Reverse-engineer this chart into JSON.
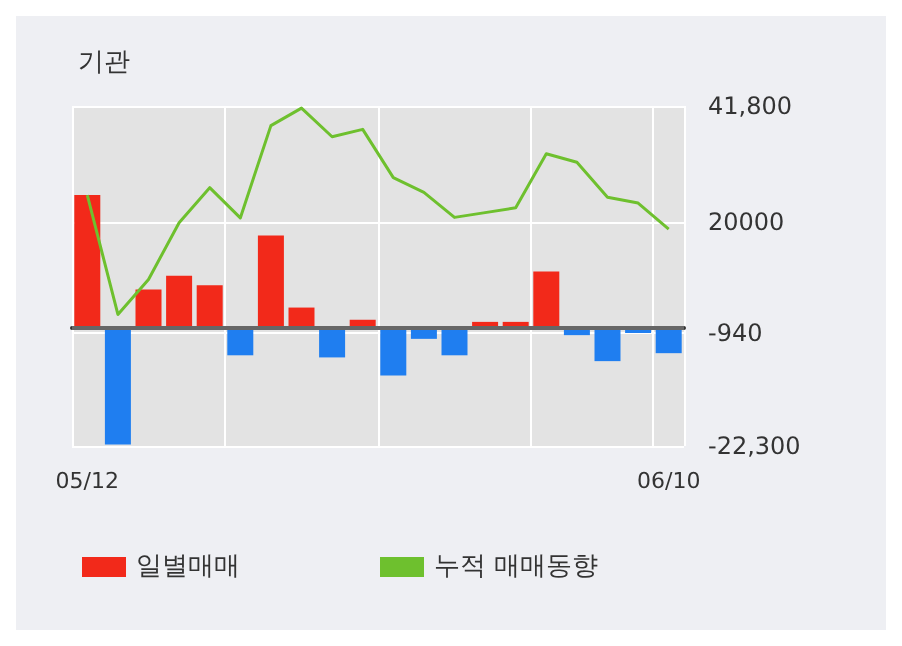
{
  "chart_data": {
    "type": "bar",
    "title": "기관",
    "categories": [
      "05/12",
      null,
      null,
      null,
      null,
      null,
      null,
      null,
      null,
      null,
      null,
      null,
      null,
      null,
      null,
      null,
      null,
      null,
      null,
      "06/10"
    ],
    "series": [
      {
        "name": "일별매매",
        "color": "#f2291a",
        "colors": [
          "#f2291a",
          "#1f7ef0",
          "#f2291a",
          "#f2291a",
          "#f2291a",
          "#1f7ef0",
          "#f2291a",
          "#f2291a",
          "#1f7ef0",
          "#f2291a",
          "#1f7ef0",
          "#1f7ef0",
          "#1f7ef0",
          "#f2291a",
          "#f2291a",
          "#f2291a",
          "#1f7ef0",
          "#1f7ef0",
          "#1f7ef0",
          "#1f7ef0"
        ],
        "values": [
          25000,
          -22000,
          7200,
          9800,
          8000,
          -5200,
          17400,
          3800,
          -5600,
          1500,
          -9000,
          -2100,
          -5200,
          1100,
          1100,
          10600,
          -1400,
          -6300,
          -1000,
          -4800
        ]
      },
      {
        "name": "누적 매매동향",
        "type": "line",
        "color": "#6ec02e",
        "values": [
          25000,
          2500,
          9100,
          19800,
          26400,
          20700,
          38100,
          41400,
          36000,
          37400,
          28300,
          25500,
          20800,
          21700,
          22600,
          32800,
          31200,
          24600,
          23500,
          18600
        ]
      }
    ],
    "ylim": [
      -22300,
      41800
    ],
    "yticks": [
      {
        "value": 41800,
        "label": "41,800"
      },
      20000,
      -940,
      {
        "value": -22300,
        "label": "-22,300"
      }
    ],
    "grid": true,
    "legend": "bottom",
    "marker": "none",
    "line_style": "solid"
  }
}
